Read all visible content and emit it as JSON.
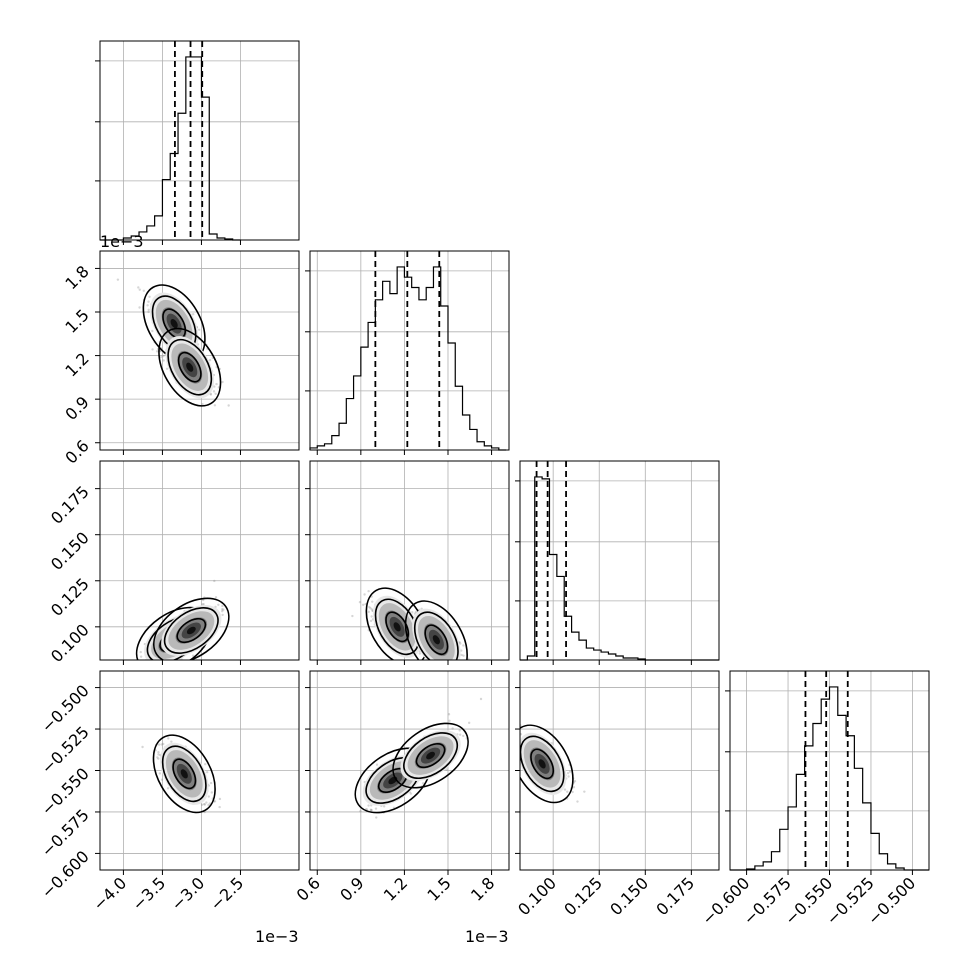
{
  "chart_data": {
    "type": "scatter",
    "title": "",
    "layout": "corner",
    "grid": true,
    "params": [
      {
        "name": "",
        "range": [
          -4.3,
          -1.75
        ],
        "ticks": [
          -4.0,
          -3.5,
          -3.0,
          -2.5
        ],
        "tick_labels": [
          "−4.0",
          "−3.5",
          "−3.0",
          "−2.5"
        ],
        "offset": "1e−3"
      },
      {
        "name": "",
        "range": [
          0.55,
          1.92
        ],
        "ticks": [
          0.6,
          0.9,
          1.2,
          1.5,
          1.8
        ],
        "tick_labels": [
          "0.6",
          "0.9",
          "1.2",
          "1.5",
          "1.8"
        ],
        "offset": "1e−3"
      },
      {
        "name": "",
        "range": [
          0.082,
          0.19
        ],
        "ticks": [
          0.1,
          0.125,
          0.15,
          0.175
        ],
        "tick_labels": [
          "0.100",
          "0.125",
          "0.150",
          "0.175"
        ],
        "offset": ""
      },
      {
        "name": "",
        "range": [
          -0.61,
          -0.49
        ],
        "ticks": [
          -0.6,
          -0.575,
          -0.55,
          -0.525,
          -0.5
        ],
        "tick_labels": [
          "−0.600",
          "−0.575",
          "−0.550",
          "−0.525",
          "−0.500"
        ],
        "offset": ""
      }
    ],
    "histograms": [
      {
        "param": 0,
        "bin_edges": [
          -4.3,
          -4.2,
          -4.1,
          -4.0,
          -3.9,
          -3.8,
          -3.7,
          -3.6,
          -3.5,
          -3.4,
          -3.3,
          -3.2,
          -3.1,
          -3.0,
          -2.9,
          -2.8,
          -2.7,
          -2.6,
          -2.5
        ],
        "counts": [
          0,
          0,
          0,
          0.01,
          0.02,
          0.04,
          0.07,
          0.12,
          0.3,
          0.43,
          0.63,
          0.91,
          0.91,
          0.71,
          0.03,
          0.01,
          0.005,
          0
        ],
        "quantiles": [
          -3.34,
          -3.14,
          -2.99
        ]
      },
      {
        "param": 1,
        "bin_edges": [
          0.55,
          0.6,
          0.65,
          0.7,
          0.75,
          0.8,
          0.85,
          0.9,
          0.95,
          1.0,
          1.05,
          1.1,
          1.15,
          1.2,
          1.25,
          1.3,
          1.35,
          1.4,
          1.45,
          1.5,
          1.55,
          1.6,
          1.65,
          1.7,
          1.75,
          1.8,
          1.85,
          1.9
        ],
        "counts": [
          0.01,
          0.02,
          0.03,
          0.07,
          0.13,
          0.25,
          0.36,
          0.5,
          0.62,
          0.73,
          0.82,
          0.76,
          0.89,
          0.84,
          0.79,
          0.73,
          0.79,
          0.89,
          0.7,
          0.52,
          0.31,
          0.17,
          0.1,
          0.04,
          0.02,
          0.01,
          0.0
        ],
        "quantiles": [
          1.0,
          1.22,
          1.44
        ]
      },
      {
        "param": 2,
        "bin_edges": [
          0.082,
          0.086,
          0.09,
          0.094,
          0.098,
          0.102,
          0.106,
          0.11,
          0.114,
          0.118,
          0.122,
          0.126,
          0.13,
          0.134,
          0.138,
          0.142,
          0.146,
          0.15,
          0.154,
          0.158,
          0.162,
          0.166,
          0.17,
          0.174,
          0.178,
          0.182,
          0.186,
          0.19
        ],
        "counts": [
          0.0,
          0.02,
          0.92,
          0.91,
          0.53,
          0.42,
          0.22,
          0.14,
          0.1,
          0.06,
          0.05,
          0.04,
          0.03,
          0.02,
          0.01,
          0.01,
          0.005,
          0,
          0,
          0,
          0,
          0,
          0,
          0,
          0,
          0,
          0
        ],
        "quantiles": [
          0.091,
          0.097,
          0.107
        ]
      },
      {
        "param": 3,
        "bin_edges": [
          -0.61,
          -0.605,
          -0.6,
          -0.595,
          -0.59,
          -0.585,
          -0.58,
          -0.575,
          -0.57,
          -0.565,
          -0.56,
          -0.555,
          -0.55,
          -0.545,
          -0.54,
          -0.535,
          -0.53,
          -0.525,
          -0.52,
          -0.515,
          -0.51,
          -0.505,
          -0.5,
          -0.495,
          -0.49
        ],
        "counts": [
          0,
          0,
          0.005,
          0.02,
          0.04,
          0.09,
          0.2,
          0.31,
          0.47,
          0.61,
          0.72,
          0.84,
          0.9,
          0.76,
          0.66,
          0.5,
          0.33,
          0.18,
          0.08,
          0.03,
          0.01,
          0,
          0,
          0
        ],
        "quantiles": [
          -0.5645,
          -0.552,
          -0.539
        ]
      }
    ],
    "pairs": [
      {
        "x": 0,
        "y": 1,
        "centers": [
          [
            -3.35,
            1.42
          ],
          [
            -3.15,
            1.12
          ]
        ],
        "tilt": -1
      },
      {
        "x": 0,
        "y": 2,
        "centers": [
          [
            -3.35,
            0.093
          ],
          [
            -3.13,
            0.098
          ]
        ],
        "tilt": 1
      },
      {
        "x": 1,
        "y": 2,
        "centers": [
          [
            1.15,
            0.1
          ],
          [
            1.42,
            0.093
          ]
        ],
        "tilt": -1
      },
      {
        "x": 0,
        "y": 3,
        "centers": [
          [
            -3.22,
            -0.552
          ]
        ],
        "tilt": -1
      },
      {
        "x": 1,
        "y": 3,
        "centers": [
          [
            1.12,
            -0.556
          ],
          [
            1.38,
            -0.541
          ]
        ],
        "tilt": 1
      },
      {
        "x": 2,
        "y": 3,
        "centers": [
          [
            0.094,
            -0.546
          ]
        ],
        "tilt": -1
      }
    ]
  }
}
